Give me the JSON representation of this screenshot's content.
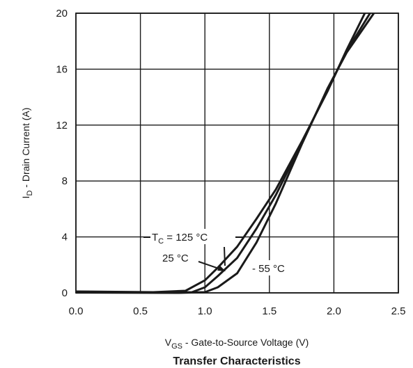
{
  "chart_data": {
    "type": "line",
    "title": "Transfer Characteristics",
    "xlabel": {
      "main": "V",
      "sub": "GS",
      "rest": " - Gate-to-Source Voltage (V)"
    },
    "ylabel": {
      "main": "I",
      "sub": "D",
      "rest": " - Drain Current (A)"
    },
    "xlim": [
      0,
      2.5
    ],
    "ylim": [
      0,
      20
    ],
    "x_ticks": [
      "0.0",
      "0.5",
      "1.0",
      "1.5",
      "2.0",
      "2.5"
    ],
    "y_ticks": [
      "0",
      "4",
      "8",
      "12",
      "16",
      "20"
    ],
    "grid": true,
    "series": [
      {
        "name": "TC = 125 °C",
        "x": [
          0,
          0.6,
          0.85,
          1.0,
          1.1,
          1.25,
          1.4,
          1.55,
          1.75,
          1.95,
          2.1,
          2.24
        ],
        "y": [
          0.1,
          0.05,
          0.15,
          0.9,
          1.8,
          3.3,
          5.3,
          7.4,
          10.8,
          14.4,
          17.4,
          20
        ]
      },
      {
        "name": "25 °C",
        "x": [
          0,
          0.7,
          0.9,
          1.0,
          1.1,
          1.25,
          1.4,
          1.55,
          1.75,
          1.95,
          2.1,
          2.28
        ],
        "y": [
          0.05,
          0.02,
          0.05,
          0.4,
          1.2,
          2.5,
          4.6,
          7.0,
          10.7,
          14.5,
          17.3,
          20
        ]
      },
      {
        "name": "- 55 °C",
        "x": [
          0,
          0.8,
          1.0,
          1.1,
          1.25,
          1.4,
          1.55,
          1.75,
          1.95,
          2.1,
          2.31
        ],
        "y": [
          0.02,
          0.0,
          0.05,
          0.4,
          1.4,
          3.6,
          6.4,
          10.6,
          14.6,
          17.2,
          20
        ]
      }
    ],
    "annotations": {
      "tc_main": "T",
      "tc_sub": "C",
      "tc_rest": " = 125 °C",
      "t25": "25 °C",
      "tm55": "- 55 °C"
    }
  }
}
